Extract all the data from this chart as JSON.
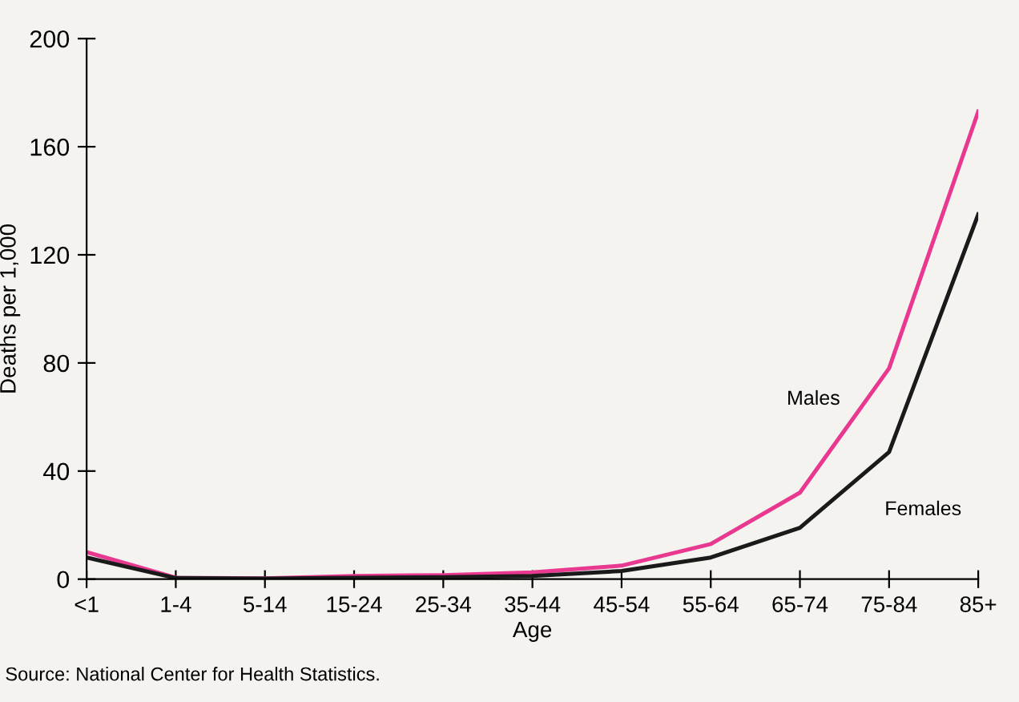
{
  "chart_data": {
    "type": "line",
    "xlabel": "Age",
    "ylabel": "Deaths per 1,000",
    "categories": [
      "<1",
      "1-4",
      "5-14",
      "15-24",
      "25-34",
      "35-44",
      "45-54",
      "55-64",
      "65-74",
      "75-84",
      "85+"
    ],
    "series": [
      {
        "name": "Males",
        "color": "#e8388f",
        "values": [
          10,
          0.5,
          0.3,
          1.2,
          1.5,
          2.5,
          5,
          13,
          32,
          78,
          173
        ]
      },
      {
        "name": "Females",
        "color": "#1a1a1a",
        "values": [
          8,
          0.4,
          0.2,
          0.5,
          0.7,
          1.2,
          3,
          8,
          19,
          47,
          135
        ]
      }
    ],
    "ylim": [
      0,
      200
    ],
    "yticks": [
      0,
      40,
      80,
      120,
      160,
      200
    ],
    "grid": false,
    "legend": false,
    "annotations": [
      "Source: National Center for Health Statistics."
    ]
  }
}
